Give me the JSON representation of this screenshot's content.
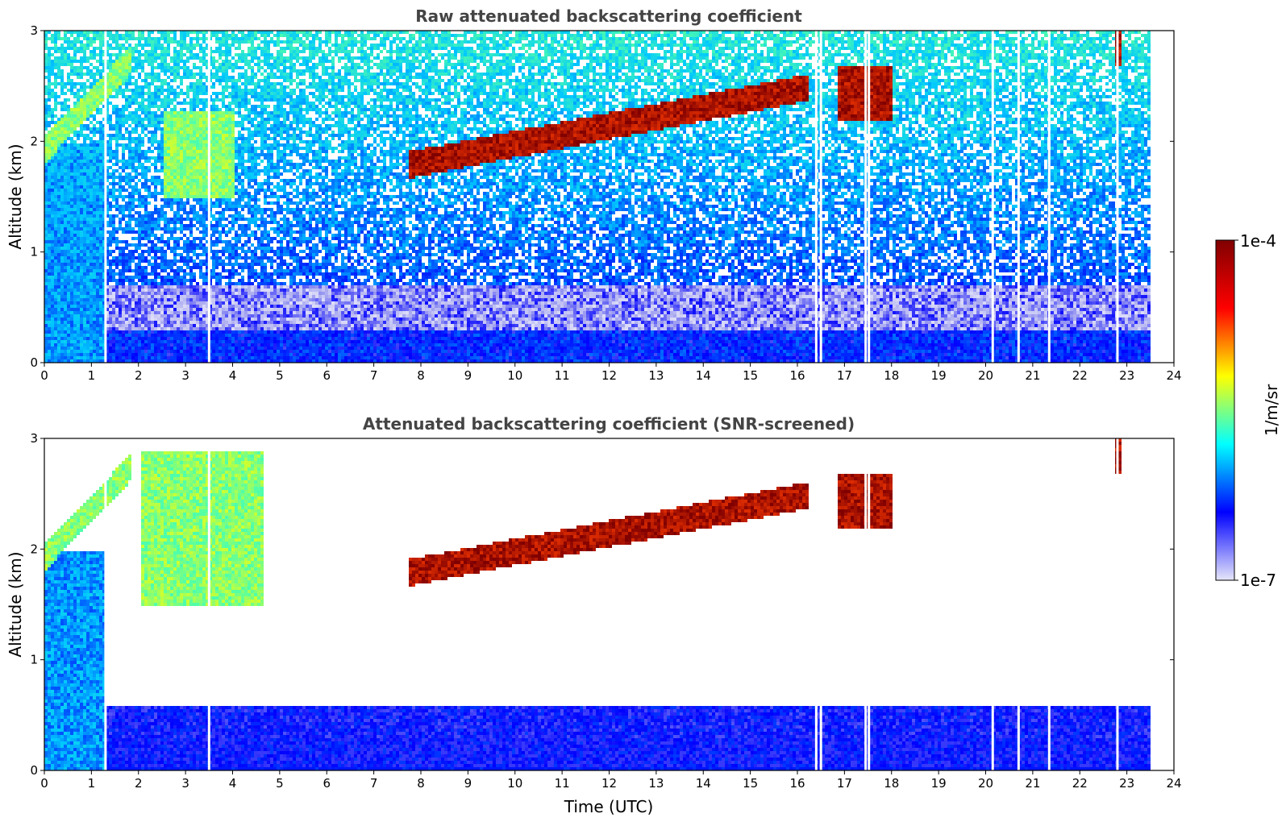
{
  "chart_data": [
    {
      "type": "heatmap",
      "title": "Raw attenuated backscattering coefficient",
      "xlabel": "",
      "ylabel": "Altitude (km)",
      "xlim": [
        0,
        24
      ],
      "ylim": [
        0,
        3
      ],
      "x_ticks": [
        0,
        1,
        2,
        3,
        4,
        5,
        6,
        7,
        8,
        9,
        10,
        11,
        12,
        13,
        14,
        15,
        16,
        17,
        18,
        19,
        20,
        21,
        22,
        23,
        24
      ],
      "y_ticks": [
        0,
        1,
        2,
        3
      ],
      "data_end_time": 23.5,
      "missing_times": [
        1.3,
        3.5,
        16.4,
        16.5,
        17.45,
        17.52,
        20.15,
        20.7,
        21.35,
        22.8
      ],
      "features": [
        {
          "name": "rising aerosol layer top",
          "t_start": 0.0,
          "t_end": 1.8,
          "alt_start": 1.95,
          "alt_end": 2.75,
          "intensity": "1e-5"
        },
        {
          "name": "boundary layer aerosol",
          "t_start": 2.5,
          "t_end": 4.0,
          "alt_min": 1.5,
          "alt_max": 2.3,
          "intensity": "1e-5"
        },
        {
          "name": "cloud layer",
          "t_start": 7.7,
          "t_end": 16.2,
          "alt_start": 1.8,
          "alt_end": 2.5,
          "intensity": "1e-4"
        },
        {
          "name": "cloud layer",
          "t_start": 16.8,
          "t_end": 18.0,
          "alt_min": 2.2,
          "alt_max": 2.7,
          "intensity": "1e-4"
        },
        {
          "name": "cloud",
          "t_start": 22.7,
          "t_end": 22.85,
          "alt_min": 2.7,
          "alt_max": 3.0,
          "intensity": "1e-4"
        },
        {
          "name": "near-surface layer",
          "t_start": 0.0,
          "t_end": 23.5,
          "alt_min": 0.0,
          "alt_max": 0.3,
          "intensity": "3e-7"
        }
      ]
    },
    {
      "type": "heatmap",
      "title": "Attenuated backscattering coefficient (SNR-screened)",
      "xlabel": "Time (UTC)",
      "ylabel": "Altitude (km)",
      "xlim": [
        0,
        24
      ],
      "ylim": [
        0,
        3
      ],
      "x_ticks": [
        0,
        1,
        2,
        3,
        4,
        5,
        6,
        7,
        8,
        9,
        10,
        11,
        12,
        13,
        14,
        15,
        16,
        17,
        18,
        19,
        20,
        21,
        22,
        23,
        24
      ],
      "y_ticks": [
        0,
        1,
        2,
        3
      ],
      "data_end_time": 23.5,
      "missing_times": [
        1.3,
        3.5,
        16.4,
        16.5,
        17.45,
        17.52,
        20.15,
        20.7,
        21.35,
        22.8
      ],
      "features": [
        {
          "name": "rising aerosol layer top",
          "t_start": 0.0,
          "t_end": 1.8,
          "alt_start": 1.95,
          "alt_end": 2.75,
          "intensity": "1e-5"
        },
        {
          "name": "boundary layer aerosol",
          "t_start": 2.0,
          "t_end": 4.6,
          "alt_min": 1.5,
          "alt_max": 2.9,
          "intensity": "1e-5"
        },
        {
          "name": "cloud layer",
          "t_start": 7.7,
          "t_end": 16.2,
          "alt_start": 1.8,
          "alt_end": 2.5,
          "intensity": "1e-4"
        },
        {
          "name": "cloud layer",
          "t_start": 16.8,
          "t_end": 18.0,
          "alt_min": 2.2,
          "alt_max": 2.7,
          "intensity": "1e-4"
        },
        {
          "name": "cloud",
          "t_start": 22.7,
          "t_end": 22.85,
          "alt_min": 2.7,
          "alt_max": 3.0,
          "intensity": "1e-4"
        },
        {
          "name": "screened near-surface layer",
          "t_start": 1.3,
          "t_end": 23.5,
          "alt_min": 0.0,
          "alt_max": 0.6,
          "intensity": "3e-7"
        }
      ]
    }
  ],
  "colorbar": {
    "label": "1/m/sr",
    "min_label": "1e-7",
    "max_label": "1e-4",
    "scale": "log",
    "colormap": [
      "#e6e6fa",
      "#0000ff",
      "#00ffff",
      "#ffff00",
      "#ff0000",
      "#800000"
    ]
  },
  "colors": {
    "title_text": "#444444",
    "background": "#ffffff"
  }
}
